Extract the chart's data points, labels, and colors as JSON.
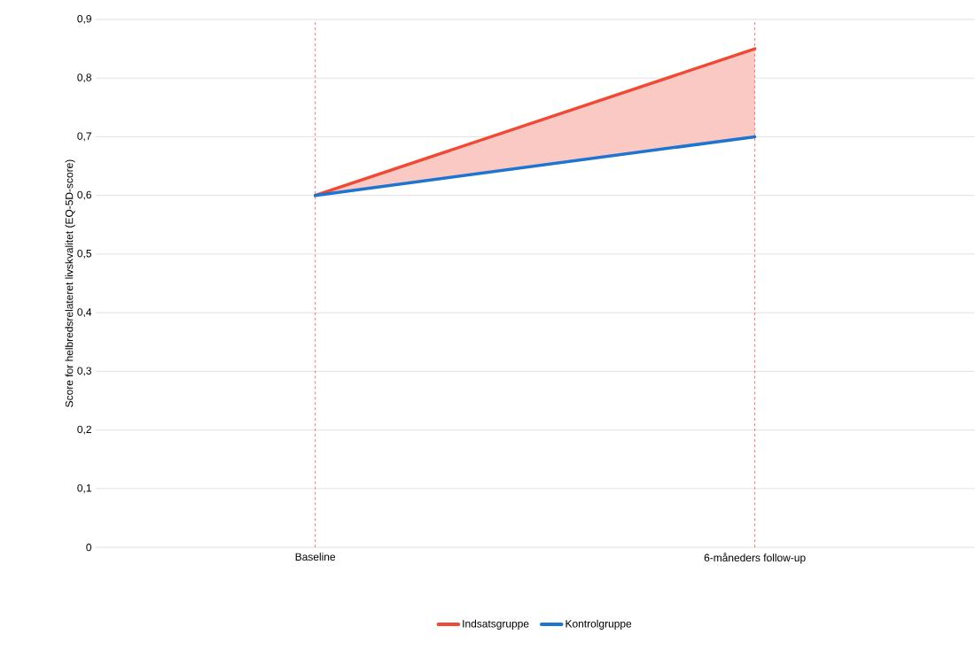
{
  "chart_data": {
    "type": "line",
    "ylabel": "Score for helbredsrelateret livskvalitet (EQ-5D-score)",
    "categories": [
      "Baseline",
      "6-måneders follow-up"
    ],
    "series": [
      {
        "name": "Indsatsgruppe",
        "color": "#ee4b36",
        "values": [
          0.6,
          0.85
        ],
        "lower": [
          0.6,
          0.7
        ],
        "upper": [
          0.6,
          0.85
        ]
      },
      {
        "name": "Kontrolgruppe",
        "color": "#1f74cf",
        "values": [
          0.6,
          0.7
        ]
      }
    ],
    "ylim": [
      0,
      0.9
    ],
    "yticks": [
      0,
      {
        "value": 0.1,
        "label": "0,1"
      },
      {
        "value": 0.2,
        "label": "0,2"
      },
      {
        "value": 0.3,
        "label": "0,3"
      },
      {
        "value": 0.4,
        "label": "0,4"
      },
      {
        "value": 0.5,
        "label": "0,5"
      },
      {
        "value": 0.6,
        "label": "0,6"
      },
      {
        "value": 0.7,
        "label": "0,7"
      },
      {
        "value": 0.8,
        "label": "0,8"
      },
      {
        "value": 0.9,
        "label": "0,9"
      }
    ],
    "ref_lines": [
      {
        "axis": "x",
        "value": "Baseline",
        "color": "#ff6b6b",
        "line_style": "dashed"
      },
      {
        "axis": "x",
        "value": "6-måneders follow-up",
        "color": "#ff6b6b",
        "line_style": "dashed"
      }
    ],
    "grid": "y",
    "legend": "bottom",
    "marker": "none",
    "line_style": "solid"
  }
}
